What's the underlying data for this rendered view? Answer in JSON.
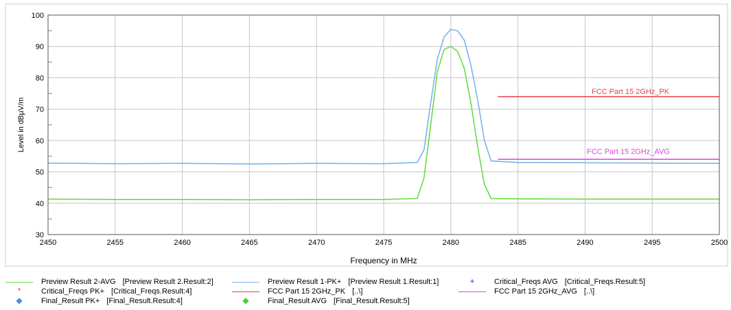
{
  "chart_data": {
    "type": "line",
    "title": "",
    "xlabel": "Frequency in MHz",
    "ylabel": "Level in dBµV/m",
    "xlim": [
      2450,
      2500
    ],
    "ylim": [
      30,
      100
    ],
    "x_ticks": [
      2450,
      2455,
      2460,
      2465,
      2470,
      2475,
      2480,
      2485,
      2490,
      2495,
      2500
    ],
    "y_ticks": [
      30,
      40,
      50,
      60,
      70,
      80,
      90,
      100
    ],
    "grid": true,
    "series": [
      {
        "name": "Preview Result 1-PK+",
        "color": "#7ab4ee",
        "x": [
          2450,
          2455,
          2460,
          2465,
          2470,
          2475,
          2477.5,
          2478,
          2478.5,
          2479,
          2479.5,
          2480,
          2480.5,
          2481,
          2481.5,
          2482,
          2482.5,
          2483,
          2485,
          2490,
          2495,
          2500
        ],
        "y": [
          52.8,
          52.6,
          52.7,
          52.5,
          52.7,
          52.6,
          53.0,
          57,
          72,
          86,
          93,
          95.5,
          95,
          92,
          84,
          73,
          60,
          53.5,
          53.0,
          52.9,
          52.8,
          52.7
        ]
      },
      {
        "name": "Preview Result 2-AVG",
        "color": "#66dd44",
        "x": [
          2450,
          2455,
          2460,
          2465,
          2470,
          2475,
          2477.5,
          2478,
          2478.5,
          2479,
          2479.5,
          2480,
          2480.5,
          2481,
          2481.5,
          2482,
          2482.5,
          2483,
          2485,
          2490,
          2495,
          2500
        ],
        "y": [
          41.3,
          41.2,
          41.2,
          41.1,
          41.2,
          41.2,
          41.5,
          48,
          65,
          82,
          89,
          90,
          88.5,
          83,
          72,
          58,
          46,
          41.5,
          41.4,
          41.3,
          41.3,
          41.3
        ]
      },
      {
        "name": "FCC Part 15 2GHz_PK",
        "color": "#e8404a",
        "x": [
          2483.5,
          2500
        ],
        "y": [
          74,
          74
        ]
      },
      {
        "name": "FCC Part 15 2GHz_AVG",
        "color": "#dd44dd",
        "x": [
          2483.5,
          2500
        ],
        "y": [
          54,
          54
        ]
      }
    ],
    "annotations": [
      "FCC Part 15 2GHz_PK",
      "FCC Part 15 2GHz_AVG"
    ],
    "legend_position": "bottom"
  },
  "legend": {
    "items": [
      {
        "label": "Preview Result 2-AVG",
        "source": "[Preview Result 2.Result:2]",
        "symbol": "line",
        "color": "#66dd44"
      },
      {
        "label": "Preview Result 1-PK+",
        "source": "[Preview Result 1.Result:1]",
        "symbol": "line",
        "color": "#7ab4ee"
      },
      {
        "label": "Critical_Freqs AVG",
        "source": "[Critical_Freqs.Result:5]",
        "symbol": "+",
        "color": "#2233cc"
      },
      {
        "label": "Critical_Freqs PK+",
        "source": "[Critical_Freqs.Result:4]",
        "symbol": "*",
        "color": "#e8404a"
      },
      {
        "label": "FCC Part 15 2GHz_PK",
        "source": "[..\\]",
        "symbol": "line",
        "color": "#e8404a"
      },
      {
        "label": "FCC Part 15 2GHz_AVG",
        "source": "[..\\]",
        "symbol": "line",
        "color": "#dd44dd"
      },
      {
        "label": "Final_Result PK+",
        "source": "[Final_Result.Result:4]",
        "symbol": "◆",
        "color": "#4d8fe0"
      },
      {
        "label": "Final_Result AVG",
        "source": "[Final_Result.Result:5]",
        "symbol": "◆",
        "color": "#44cc33"
      }
    ]
  }
}
